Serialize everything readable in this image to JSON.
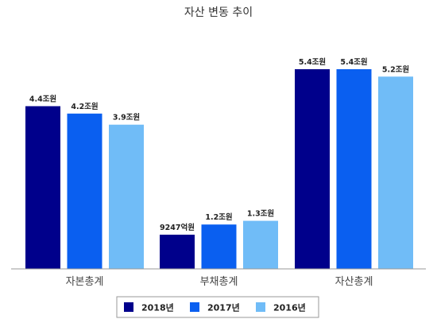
{
  "chart_data": {
    "type": "bar",
    "title": "자산 변동 추이",
    "categories": [
      "자본총계",
      "부채총계",
      "자산총계"
    ],
    "series": [
      {
        "name": "2018년",
        "color": "#00008b",
        "values": [
          4.4,
          0.9247,
          5.4
        ],
        "labels": [
          "4.4조원",
          "9247억원",
          "5.4조원"
        ]
      },
      {
        "name": "2017년",
        "color": "#0a5ff0",
        "values": [
          4.2,
          1.2,
          5.4
        ],
        "labels": [
          "4.2조원",
          "1.2조원",
          "5.4조원"
        ]
      },
      {
        "name": "2016년",
        "color": "#70bcf7",
        "values": [
          3.9,
          1.3,
          5.2
        ],
        "labels": [
          "3.9조원",
          "1.3조원",
          "5.2조원"
        ]
      }
    ],
    "ylim": [
      0,
      6.0
    ],
    "grid": false,
    "legend_position": "bottom"
  }
}
